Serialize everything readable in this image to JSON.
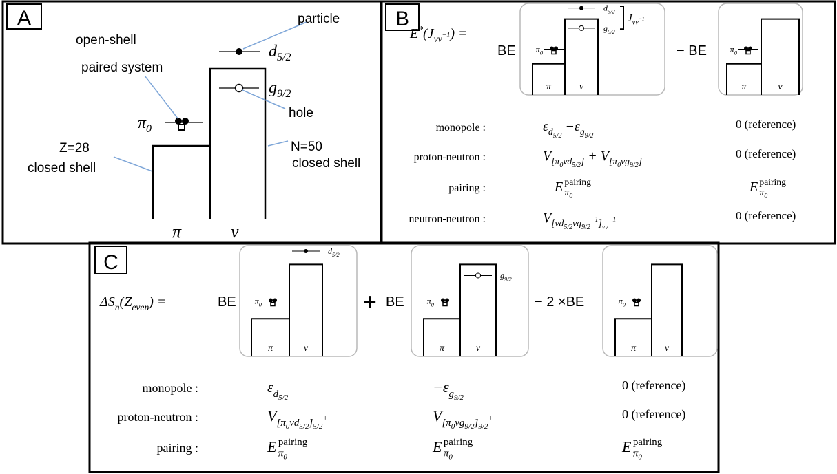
{
  "panel_a": {
    "label": "A",
    "particle": "particle",
    "open_shell": [
      "open-shell",
      "paired system"
    ],
    "hole": "hole",
    "z_shell": [
      "Z=28",
      "closed shell"
    ],
    "n_shell": [
      "N=50",
      "closed shell"
    ],
    "pi": "π",
    "nu": "ν",
    "pi0": [
      "π",
      "0"
    ],
    "particle_level": [
      "d",
      "5/2"
    ],
    "hole_level": [
      "g",
      "9/2"
    ]
  },
  "panel_b": {
    "label": "B",
    "lhs": [
      "E",
      "*",
      "(J",
      "νν",
      "−1",
      ") ="
    ],
    "be": "BE",
    "minus_be": "− BE",
    "diagrams": [
      {
        "pi0": [
          "π",
          "0"
        ],
        "pi": "π",
        "nu": "ν",
        "particle": [
          "d",
          "5/2"
        ],
        "hole": [
          "g",
          "9/2"
        ],
        "coupling": [
          "J",
          "νν",
          "−1"
        ]
      },
      {
        "pi0": [
          "π",
          "0"
        ],
        "pi": "π",
        "nu": "ν"
      }
    ],
    "rows": [
      {
        "name": "monopole :",
        "term": [
          "ε",
          "d",
          "5/2",
          " −ε",
          "g",
          "9/2"
        ],
        "reference": "0 (reference)"
      },
      {
        "name": "proton-neutron :",
        "term": [
          "V",
          "[π",
          "0",
          "νd",
          "5/2",
          "]",
          " + V",
          "[π",
          "0",
          "νg",
          "9/2",
          "]"
        ],
        "reference": "0 (reference)"
      },
      {
        "name": "pairing :",
        "term": [
          "E",
          "pairing",
          "π",
          "0"
        ],
        "reference": [
          "E",
          "pairing",
          "π",
          "0"
        ]
      },
      {
        "name": "neutron-neutron :",
        "term": [
          "V",
          "[νd",
          "5/2",
          "νg",
          "9/2",
          "−1",
          "]",
          "νν",
          "−1"
        ],
        "reference": "0 (reference)"
      }
    ]
  },
  "panel_c": {
    "label": "C",
    "lhs": [
      "ΔS",
      "n",
      "(Z",
      "even",
      ") ="
    ],
    "be": "BE",
    "plus_be": [
      "+",
      "BE"
    ],
    "minus_be": "− 2 ×BE",
    "diagrams": [
      {
        "pi0": [
          "π",
          "0"
        ],
        "pi": "π",
        "nu": "ν",
        "particle": [
          "d",
          "5/2"
        ]
      },
      {
        "pi0": [
          "π",
          "0"
        ],
        "pi": "π",
        "nu": "ν",
        "hole": [
          "g",
          "9/2"
        ]
      },
      {
        "pi0": [
          "π",
          "0"
        ],
        "pi": "π",
        "nu": "ν"
      }
    ],
    "rows": [
      {
        "name": "monopole :",
        "terms": [
          [
            "ε",
            "d",
            "5/2"
          ],
          [
            "−ε",
            "g",
            "9/2"
          ],
          "0 (reference)"
        ]
      },
      {
        "name": "proton-neutron :",
        "terms": [
          [
            "V",
            "[π",
            "0",
            "νd",
            "5/2",
            "]",
            "5/2",
            "+"
          ],
          [
            "V",
            "[π",
            "0",
            "νg",
            "9/2",
            "]",
            "9/2",
            "+"
          ],
          "0 (reference)"
        ]
      },
      {
        "name": "pairing :",
        "terms": [
          [
            "E",
            "pairing",
            "π",
            "0"
          ],
          [
            "E",
            "pairing",
            "π",
            "0"
          ],
          [
            "E",
            "pairing",
            "π",
            "0"
          ]
        ]
      }
    ]
  }
}
